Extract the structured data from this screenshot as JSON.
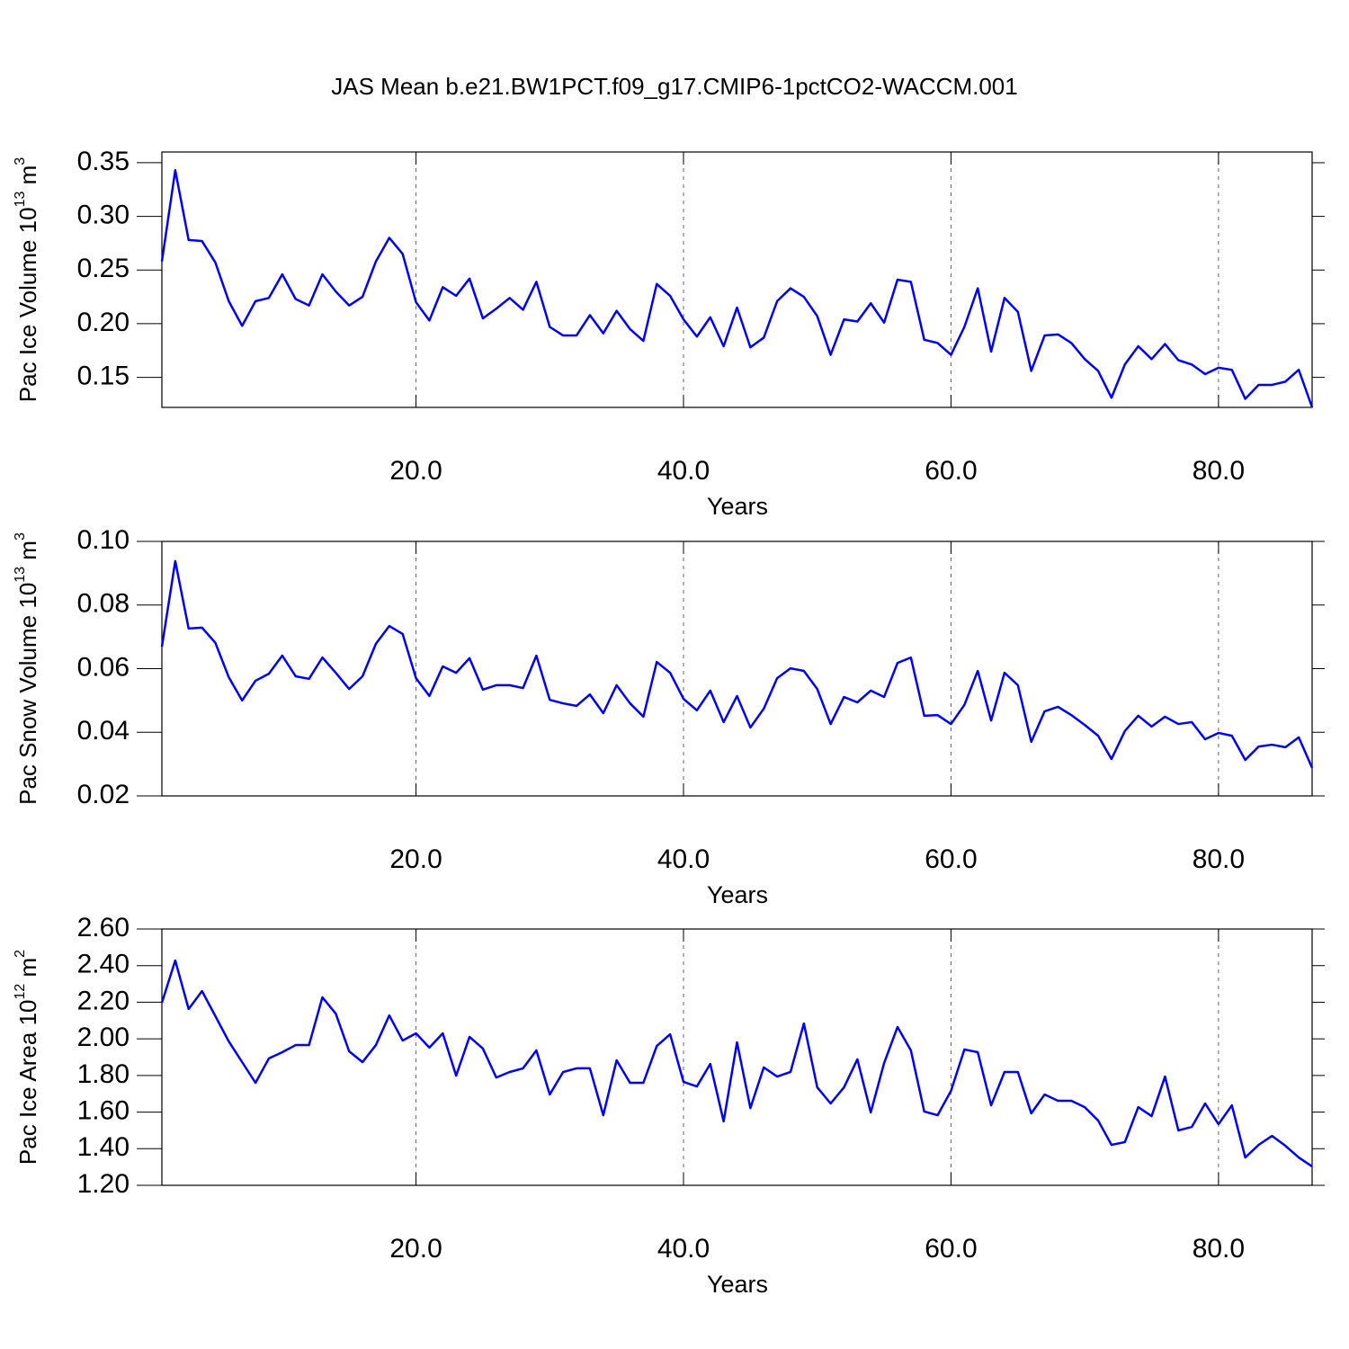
{
  "title": "JAS Mean b.e21.BW1PCT.f09_g17.CMIP6-1pctCO2-WACCM.001",
  "chart_data": [
    {
      "type": "line",
      "ylabel": [
        "Pac Ice Volume 10",
        "13",
        " m",
        "3"
      ],
      "xlabel": "Years",
      "color": "#0000ff",
      "grid": "x",
      "xlim": [
        1,
        87
      ],
      "ylim": [
        0.122,
        0.36
      ],
      "xticks": [
        {
          "value": 20,
          "label": "20.0"
        },
        {
          "value": 40,
          "label": "40.0"
        },
        {
          "value": 60,
          "label": "60.0"
        },
        {
          "value": 80,
          "label": "80.0"
        }
      ],
      "yticks": [
        0.15,
        {
          "value": 0.2,
          "label": "0.20"
        },
        0.25,
        {
          "value": 0.3,
          "label": "0.30"
        },
        0.35
      ],
      "x": [
        1,
        2,
        3,
        4,
        5,
        6,
        7,
        8,
        9,
        10,
        11,
        12,
        13,
        14,
        15,
        16,
        17,
        18,
        19,
        20,
        21,
        22,
        23,
        24,
        25,
        26,
        27,
        28,
        29,
        30,
        31,
        32,
        33,
        34,
        35,
        36,
        37,
        38,
        39,
        40,
        41,
        42,
        43,
        44,
        45,
        46,
        47,
        48,
        49,
        50,
        51,
        52,
        53,
        54,
        55,
        56,
        57,
        58,
        59,
        60,
        61,
        62,
        63,
        64,
        65,
        66,
        67,
        68,
        69,
        70,
        71,
        72,
        73,
        74,
        75,
        76,
        77,
        78,
        79,
        80,
        81,
        82,
        83,
        84,
        85,
        86,
        87
      ],
      "values": [
        0.258,
        0.343,
        0.278,
        0.277,
        0.257,
        0.221,
        0.198,
        0.221,
        0.224,
        0.246,
        0.223,
        0.217,
        0.246,
        0.23,
        0.217,
        0.225,
        0.258,
        0.28,
        0.265,
        0.22,
        0.203,
        0.234,
        0.226,
        0.242,
        0.205,
        0.214,
        0.224,
        0.213,
        0.239,
        0.197,
        0.189,
        0.189,
        0.208,
        0.191,
        0.212,
        0.195,
        0.184,
        0.237,
        0.226,
        0.204,
        0.188,
        0.206,
        0.179,
        0.215,
        0.178,
        0.187,
        0.221,
        0.233,
        0.225,
        0.207,
        0.171,
        0.204,
        0.202,
        0.219,
        0.201,
        0.241,
        0.239,
        0.185,
        0.182,
        0.171,
        0.197,
        0.233,
        0.174,
        0.224,
        0.211,
        0.156,
        0.189,
        0.19,
        0.182,
        0.167,
        0.156,
        0.131,
        0.162,
        0.179,
        0.167,
        0.181,
        0.166,
        0.162,
        0.153,
        0.159,
        0.157,
        0.13,
        0.143,
        0.143,
        0.146,
        0.157,
        0.122
      ]
    },
    {
      "type": "line",
      "ylabel": [
        "Pac Snow Volume 10",
        "13",
        " m",
        "3"
      ],
      "xlabel": "Years",
      "color": "#0000ff",
      "grid": "x",
      "xlim": [
        1,
        87
      ],
      "ylim": [
        0.02,
        0.1
      ],
      "xticks": [
        {
          "value": 20,
          "label": "20.0"
        },
        {
          "value": 40,
          "label": "40.0"
        },
        {
          "value": 60,
          "label": "60.0"
        },
        {
          "value": 80,
          "label": "80.0"
        }
      ],
      "yticks": [
        0.02,
        0.04,
        0.06,
        0.08,
        {
          "value": 0.1,
          "label": "0.10"
        }
      ],
      "x": [
        1,
        2,
        3,
        4,
        5,
        6,
        7,
        8,
        9,
        10,
        11,
        12,
        13,
        14,
        15,
        16,
        17,
        18,
        19,
        20,
        21,
        22,
        23,
        24,
        25,
        26,
        27,
        28,
        29,
        30,
        31,
        32,
        33,
        34,
        35,
        36,
        37,
        38,
        39,
        40,
        41,
        42,
        43,
        44,
        45,
        46,
        47,
        48,
        49,
        50,
        51,
        52,
        53,
        54,
        55,
        56,
        57,
        58,
        59,
        60,
        61,
        62,
        63,
        64,
        65,
        66,
        67,
        68,
        69,
        70,
        71,
        72,
        73,
        74,
        75,
        76,
        77,
        78,
        79,
        80,
        81,
        82,
        83,
        84,
        85,
        86,
        87
      ],
      "values": [
        0.0669,
        0.0938,
        0.0726,
        0.0729,
        0.0681,
        0.0573,
        0.05,
        0.0562,
        0.0584,
        0.0641,
        0.0576,
        0.0568,
        0.0635,
        0.0587,
        0.0536,
        0.0576,
        0.0678,
        0.0734,
        0.0709,
        0.057,
        0.0514,
        0.0607,
        0.0587,
        0.0633,
        0.0534,
        0.0548,
        0.0548,
        0.0539,
        0.0641,
        0.0502,
        0.0491,
        0.0483,
        0.0519,
        0.046,
        0.0548,
        0.0491,
        0.0449,
        0.0621,
        0.0587,
        0.0505,
        0.0469,
        0.0531,
        0.0432,
        0.0514,
        0.0415,
        0.0474,
        0.057,
        0.0601,
        0.0593,
        0.0536,
        0.0426,
        0.0511,
        0.0494,
        0.0531,
        0.0511,
        0.0618,
        0.0635,
        0.0452,
        0.0454,
        0.0426,
        0.0486,
        0.0593,
        0.0437,
        0.0587,
        0.0548,
        0.037,
        0.0466,
        0.048,
        0.0454,
        0.0423,
        0.0389,
        0.0316,
        0.0404,
        0.0452,
        0.0418,
        0.0449,
        0.0426,
        0.0432,
        0.0378,
        0.0398,
        0.0389,
        0.0313,
        0.0355,
        0.0361,
        0.0353,
        0.0384,
        0.0288
      ]
    },
    {
      "type": "line",
      "ylabel": [
        "Pac Ice Area 10",
        "12",
        " m",
        "2"
      ],
      "xlabel": "Years",
      "color": "#0000ff",
      "grid": "x",
      "xlim": [
        1,
        87
      ],
      "ylim": [
        1.2,
        2.6
      ],
      "xticks": [
        {
          "value": 20,
          "label": "20.0"
        },
        {
          "value": 40,
          "label": "40.0"
        },
        {
          "value": 60,
          "label": "60.0"
        },
        {
          "value": 80,
          "label": "80.0"
        }
      ],
      "yticks": [
        {
          "value": 1.2,
          "label": "1.20"
        },
        {
          "value": 1.4,
          "label": "1.40"
        },
        {
          "value": 1.6,
          "label": "1.60"
        },
        {
          "value": 1.8,
          "label": "1.80"
        },
        {
          "value": 2,
          "label": "2.00"
        },
        {
          "value": 2.2,
          "label": "2.20"
        },
        {
          "value": 2.4,
          "label": "2.40"
        },
        {
          "value": 2.6,
          "label": "2.60"
        }
      ],
      "x": [
        1,
        2,
        3,
        4,
        5,
        6,
        7,
        8,
        9,
        10,
        11,
        12,
        13,
        14,
        15,
        16,
        17,
        18,
        19,
        20,
        21,
        22,
        23,
        24,
        25,
        26,
        27,
        28,
        29,
        30,
        31,
        32,
        33,
        34,
        35,
        36,
        37,
        38,
        39,
        40,
        41,
        42,
        43,
        44,
        45,
        46,
        47,
        48,
        49,
        50,
        51,
        52,
        53,
        54,
        55,
        56,
        57,
        58,
        59,
        60,
        61,
        62,
        63,
        64,
        65,
        66,
        67,
        68,
        69,
        70,
        71,
        72,
        73,
        74,
        75,
        76,
        77,
        78,
        79,
        80,
        81,
        82,
        83,
        84,
        85,
        86,
        87
      ],
      "values": [
        2.197,
        2.428,
        2.163,
        2.261,
        2.124,
        1.986,
        1.873,
        1.76,
        1.893,
        1.927,
        1.966,
        1.966,
        2.227,
        2.138,
        1.932,
        1.873,
        1.966,
        2.128,
        1.991,
        2.03,
        1.952,
        2.03,
        1.799,
        2.011,
        1.947,
        1.789,
        1.819,
        1.839,
        1.937,
        1.696,
        1.819,
        1.839,
        1.839,
        1.583,
        1.883,
        1.76,
        1.76,
        1.961,
        2.025,
        1.765,
        1.74,
        1.863,
        1.549,
        1.981,
        1.622,
        1.844,
        1.794,
        1.819,
        2.084,
        1.735,
        1.647,
        1.735,
        1.888,
        1.598,
        1.868,
        2.065,
        1.937,
        1.603,
        1.583,
        1.716,
        1.942,
        1.927,
        1.637,
        1.819,
        1.819,
        1.593,
        1.696,
        1.662,
        1.662,
        1.627,
        1.554,
        1.421,
        1.436,
        1.627,
        1.578,
        1.794,
        1.5,
        1.519,
        1.647,
        1.534,
        1.637,
        1.352,
        1.421,
        1.47,
        1.416,
        1.352,
        1.303
      ]
    }
  ]
}
